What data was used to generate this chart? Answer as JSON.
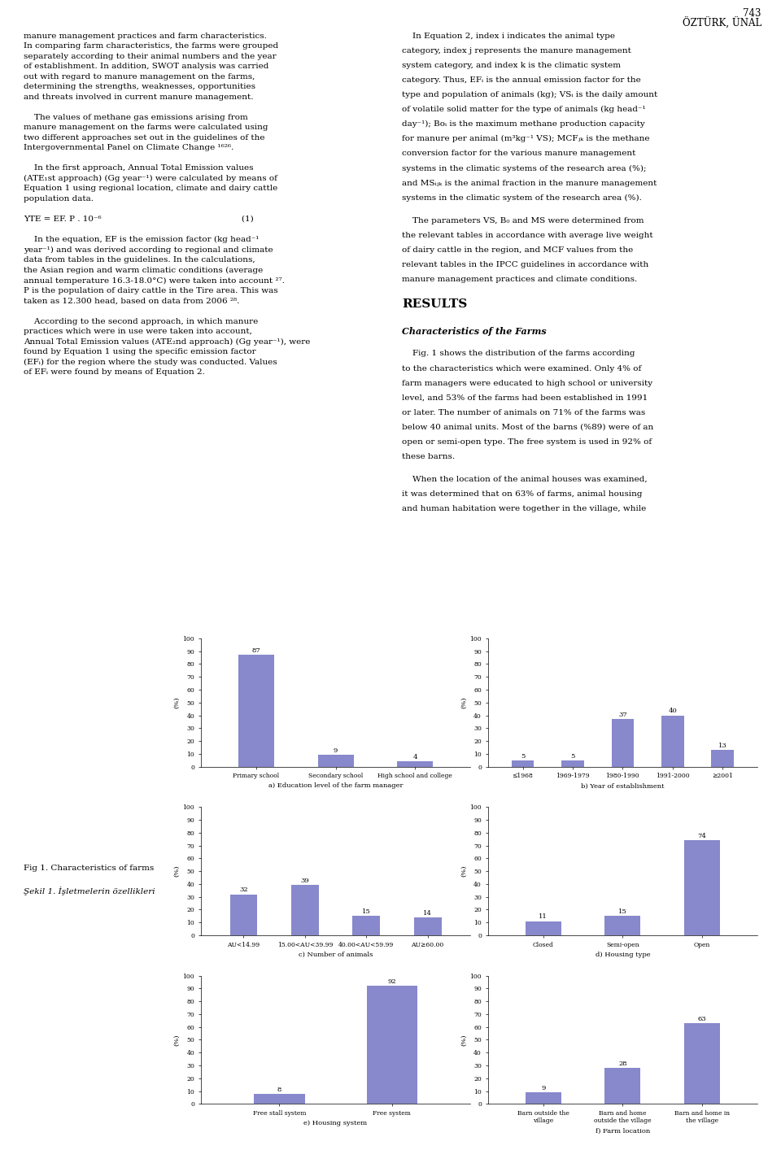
{
  "page_header_number": "743",
  "page_header_text": "ÖZTÜRK, ÜNAL",
  "fig1_label": "Fig 1. Characteristics of farms",
  "fig1_label_turkish": "Şekil 1. İşletmelerin özellikleri",
  "chart_bar_color": "#8888cc",
  "charts": {
    "a": {
      "title": "a) Education level of the farm manager",
      "categories": [
        "Primary school",
        "Secondary school",
        "High school and college"
      ],
      "values": [
        87,
        9,
        4
      ],
      "ylim": [
        0,
        100
      ],
      "yticks": [
        0,
        10,
        20,
        30,
        40,
        50,
        60,
        70,
        80,
        90,
        100
      ]
    },
    "b": {
      "title": "b) Year of establishment",
      "categories": [
        "≤1968",
        "1969-1979",
        "1980-1990",
        "1991-2000",
        "≥2001"
      ],
      "values": [
        5,
        5,
        37,
        40,
        13
      ],
      "ylim": [
        0,
        100
      ],
      "yticks": [
        0,
        10,
        20,
        30,
        40,
        50,
        60,
        70,
        80,
        90,
        100
      ]
    },
    "c": {
      "title": "c) Number of animals",
      "categories": [
        "AU<14.99",
        "15.00<AU<39.99",
        "40.00<AU<59.99",
        "AU≥60.00"
      ],
      "values": [
        32,
        39,
        15,
        14
      ],
      "ylim": [
        0,
        100
      ],
      "yticks": [
        0,
        10,
        20,
        30,
        40,
        50,
        60,
        70,
        80,
        90,
        100
      ]
    },
    "d": {
      "title": "d) Housing type",
      "categories": [
        "Closed",
        "Semi-open",
        "Open"
      ],
      "values": [
        11,
        15,
        74
      ],
      "ylim": [
        0,
        100
      ],
      "yticks": [
        0,
        10,
        20,
        30,
        40,
        50,
        60,
        70,
        80,
        90,
        100
      ]
    },
    "e": {
      "title": "e) Housing system",
      "categories": [
        "Free stall system",
        "Free system"
      ],
      "values": [
        8,
        92
      ],
      "ylim": [
        0,
        100
      ],
      "yticks": [
        0,
        10,
        20,
        30,
        40,
        50,
        60,
        70,
        80,
        90,
        100
      ]
    },
    "f": {
      "title": "f) Farm location",
      "categories": [
        "Barn outside the\nvillage",
        "Barn and home\noutside the village",
        "Barn and home in\nthe village"
      ],
      "values": [
        9,
        28,
        63
      ],
      "ylim": [
        0,
        100
      ],
      "yticks": [
        0,
        10,
        20,
        30,
        40,
        50,
        60,
        70,
        80,
        90,
        100
      ]
    }
  },
  "ylabel": "(%)"
}
